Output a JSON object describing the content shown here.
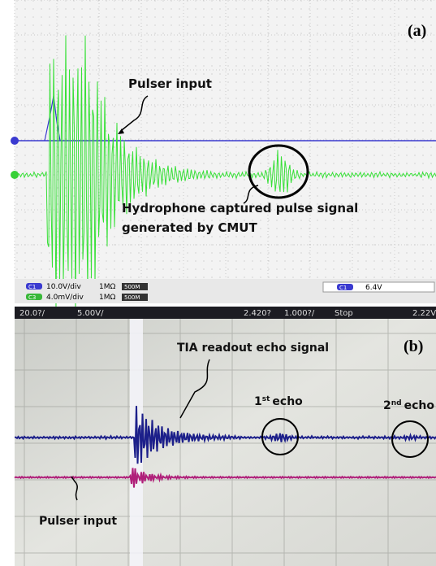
{
  "panel_a": {
    "label": "(a)",
    "pulser_label": "Pulser input",
    "hydrophone_label_line1": "Hydrophone captured pulse signal",
    "hydrophone_label_line2": "generated by CMUT",
    "status": {
      "ch1_badge": "C1",
      "ch1_scale": "10.0V/div",
      "ch1_coupling": "1MΩ",
      "ch1_bw": "500M",
      "ch3_badge": "C3",
      "ch3_scale": "4.0mV/div",
      "ch3_coupling": "1MΩ",
      "ch3_bw": "500M",
      "trig_badge": "C1",
      "trig_level": "6.4V"
    }
  },
  "panel_b": {
    "label": "(b)",
    "top_bar": {
      "timebase": "20.0?/",
      "ch_volts": "5.00V/",
      "delay": "2.420?",
      "time_div": "1.000?/",
      "state": "Stop",
      "trigger": "2.22V"
    },
    "tia_label": "TIA readout echo signal",
    "echo_1": {
      "number": "1",
      "suffix": "st",
      "word": "echo"
    },
    "echo_2": {
      "number": "2",
      "suffix": "nd",
      "word": "echo"
    },
    "pulser_label": "Pulser input"
  }
}
